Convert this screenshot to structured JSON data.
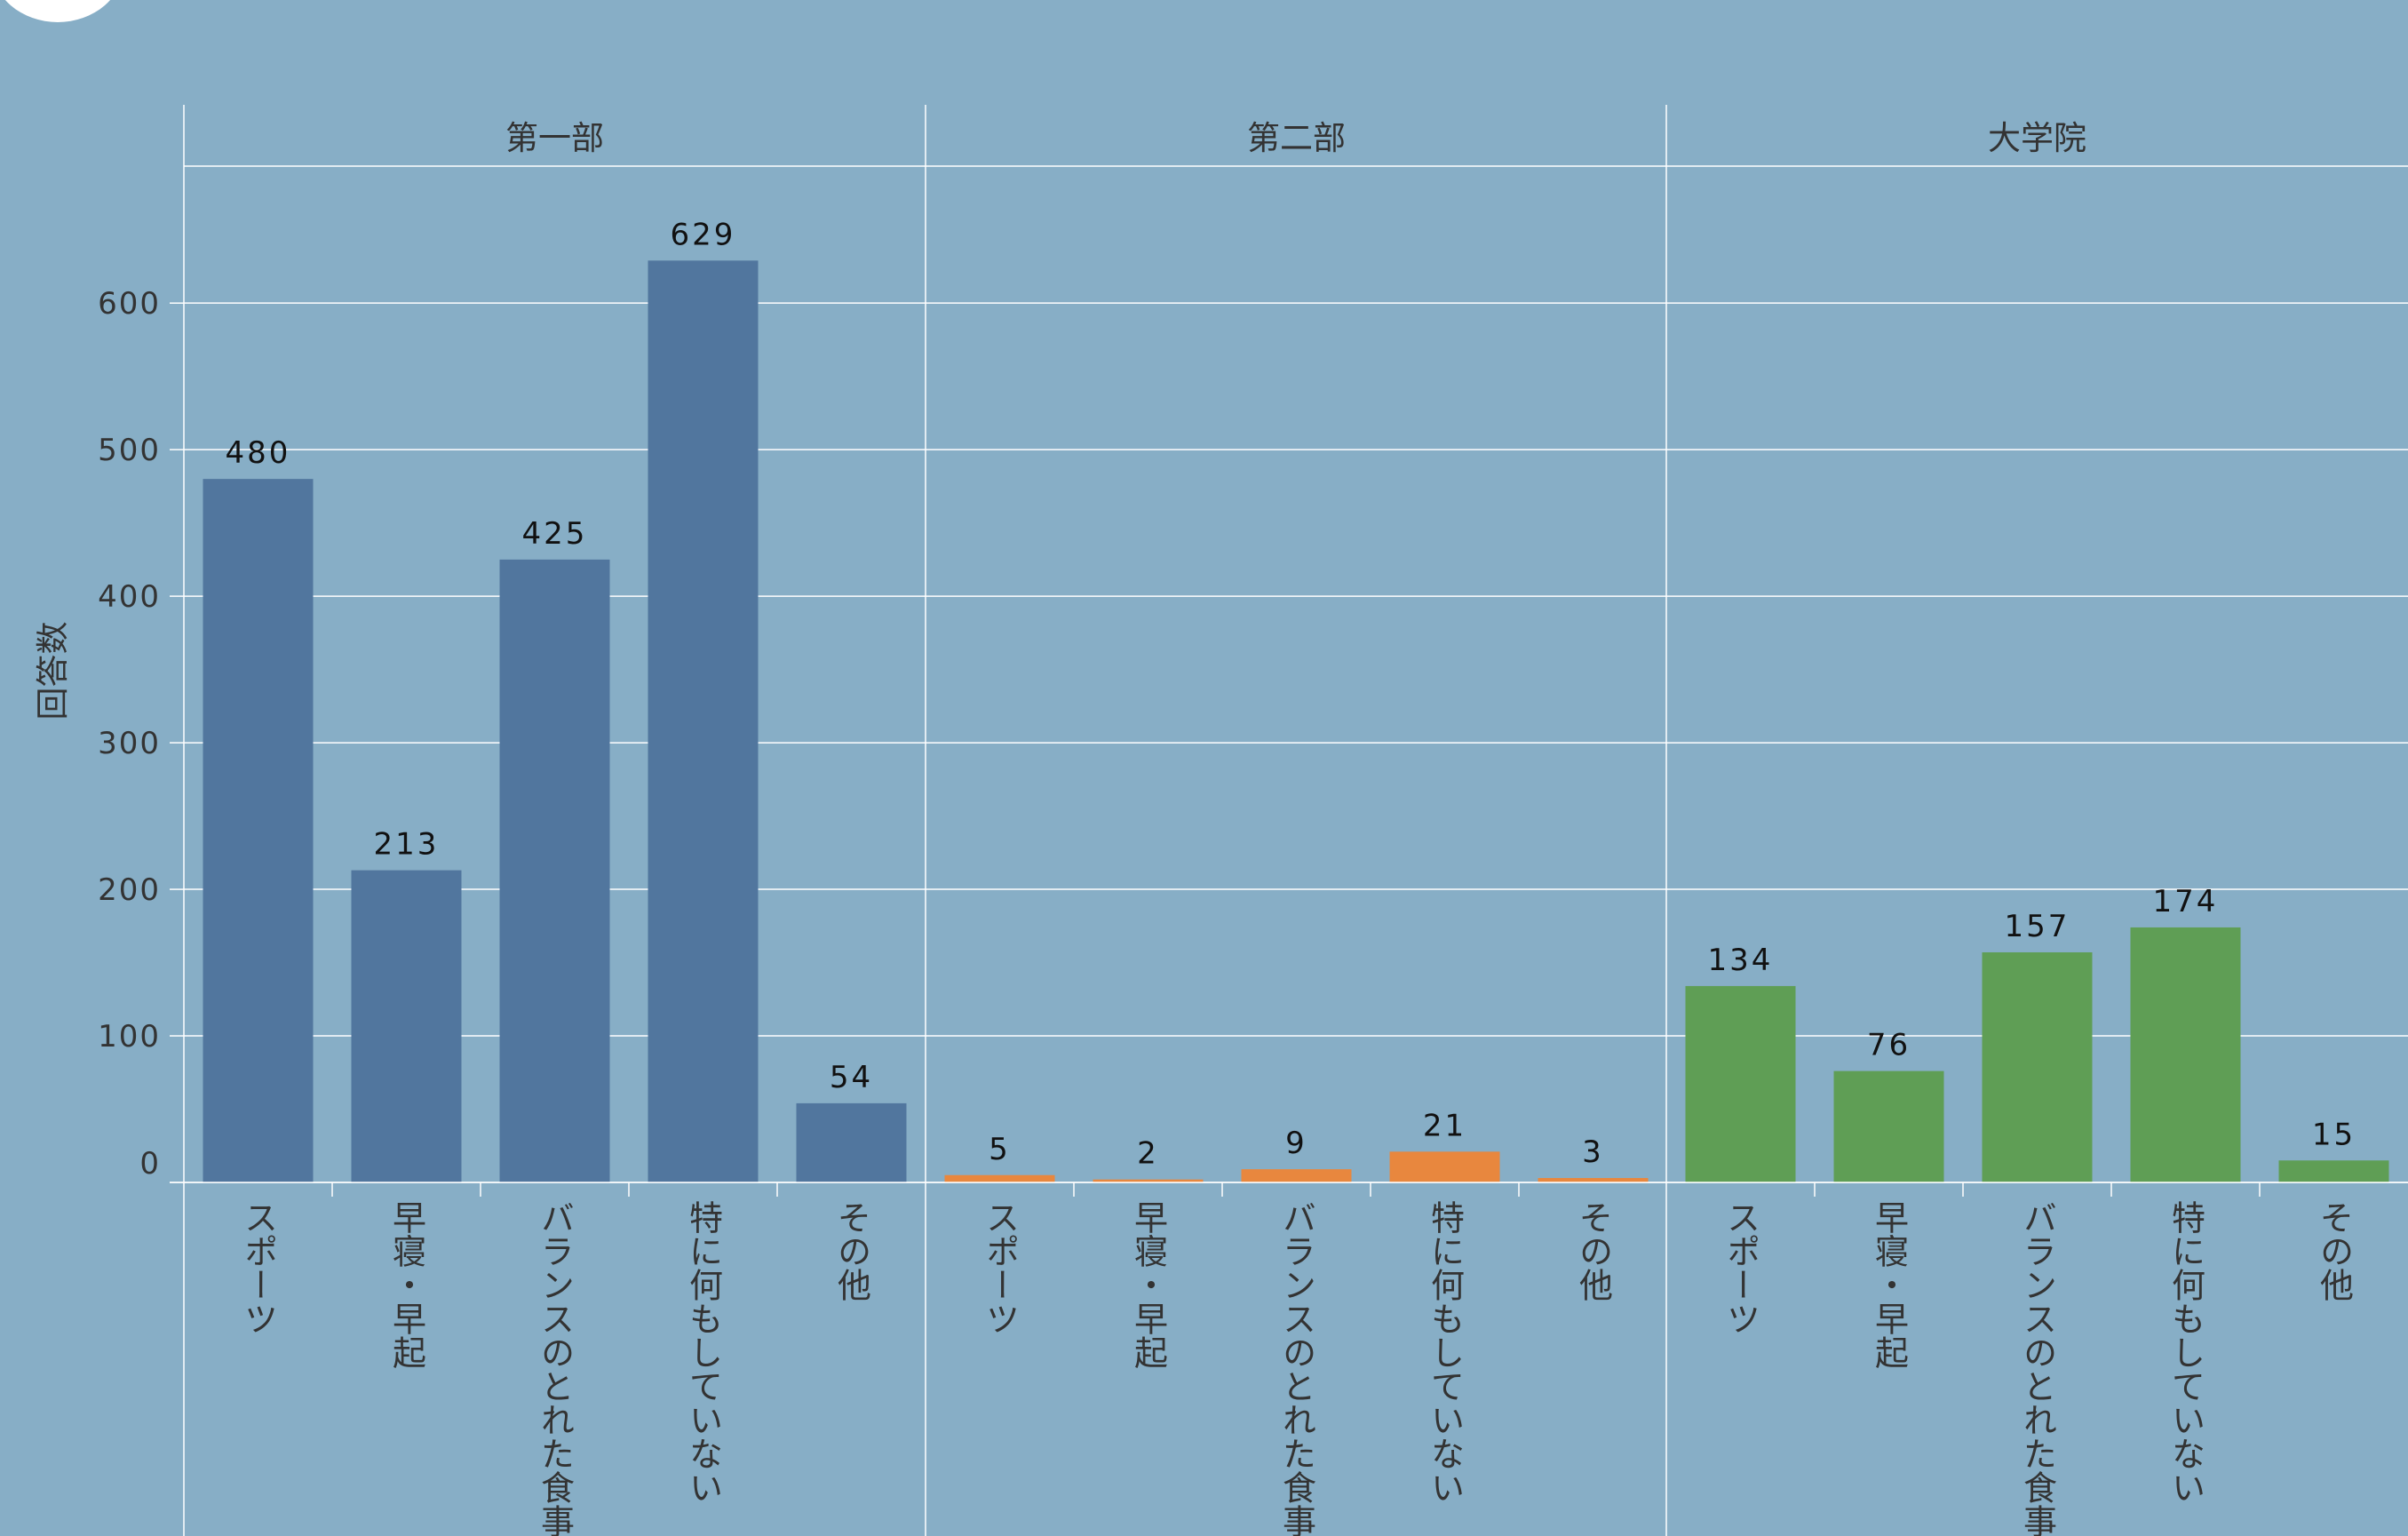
{
  "chart_data": {
    "type": "bar",
    "ylabel": "回答数",
    "xlabel": "",
    "ylim": [
      0,
      700
    ],
    "yticks": [
      0,
      100,
      200,
      300,
      400,
      500,
      600
    ],
    "grid": true,
    "categories": [
      "スポーツ",
      "早寝・早起",
      "バランスのとれた食事",
      "特に何もしていない",
      "その他"
    ],
    "panels": [
      {
        "title": "第一部",
        "color": "#51769E",
        "values": [
          480,
          213,
          425,
          629,
          54
        ]
      },
      {
        "title": "第二部",
        "color": "#E8873E",
        "values": [
          5,
          2,
          9,
          21,
          3
        ]
      },
      {
        "title": "大学院",
        "color": "#5F9E55",
        "values": [
          134,
          76,
          157,
          174,
          15
        ]
      }
    ]
  }
}
